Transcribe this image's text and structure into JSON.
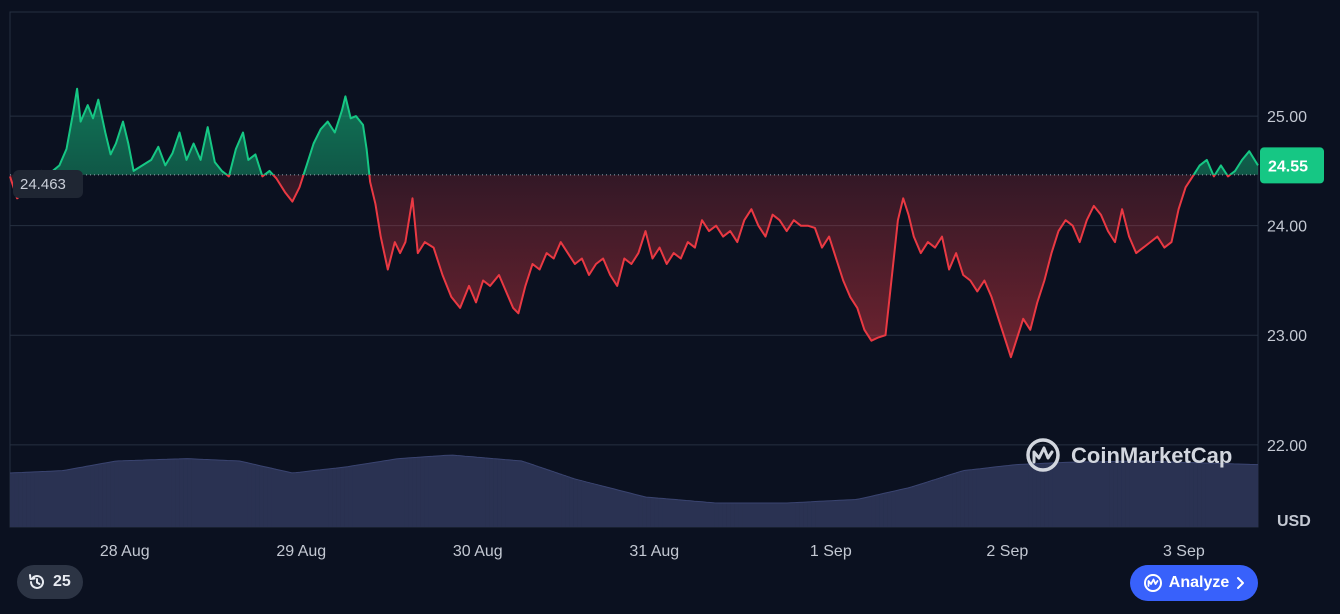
{
  "chart_data": {
    "type": "line",
    "baseline": 24.463,
    "baseline_label": "24.463",
    "current_price_label": "24.55",
    "currency": "USD",
    "y_ticks": [
      {
        "value": 25.0,
        "label": "25.00"
      },
      {
        "value": 24.0,
        "label": "24.00"
      },
      {
        "value": 23.0,
        "label": "23.00"
      },
      {
        "value": 22.0,
        "label": "22.00"
      }
    ],
    "ylim": [
      21.25,
      25.95
    ],
    "xlim": [
      0,
      7.07
    ],
    "x_ticks": [
      {
        "value": 0.65,
        "label": "28 Aug"
      },
      {
        "value": 1.65,
        "label": "29 Aug"
      },
      {
        "value": 2.65,
        "label": "30 Aug"
      },
      {
        "value": 3.65,
        "label": "31 Aug"
      },
      {
        "value": 4.65,
        "label": "1 Sep"
      },
      {
        "value": 5.65,
        "label": "2 Sep"
      },
      {
        "value": 6.65,
        "label": "3 Sep"
      }
    ],
    "series": [
      {
        "points": [
          [
            0.0,
            24.45
          ],
          [
            0.04,
            24.25
          ],
          [
            0.08,
            24.3
          ],
          [
            0.13,
            24.4
          ],
          [
            0.18,
            24.5
          ],
          [
            0.22,
            24.47
          ],
          [
            0.28,
            24.55
          ],
          [
            0.32,
            24.7
          ],
          [
            0.36,
            25.05
          ],
          [
            0.38,
            25.25
          ],
          [
            0.4,
            24.95
          ],
          [
            0.44,
            25.1
          ],
          [
            0.47,
            24.98
          ],
          [
            0.5,
            25.15
          ],
          [
            0.54,
            24.85
          ],
          [
            0.57,
            24.65
          ],
          [
            0.6,
            24.75
          ],
          [
            0.64,
            24.95
          ],
          [
            0.67,
            24.75
          ],
          [
            0.7,
            24.5
          ],
          [
            0.75,
            24.55
          ],
          [
            0.8,
            24.6
          ],
          [
            0.84,
            24.72
          ],
          [
            0.88,
            24.55
          ],
          [
            0.92,
            24.66
          ],
          [
            0.96,
            24.85
          ],
          [
            1.0,
            24.6
          ],
          [
            1.04,
            24.75
          ],
          [
            1.08,
            24.6
          ],
          [
            1.12,
            24.9
          ],
          [
            1.16,
            24.58
          ],
          [
            1.2,
            24.5
          ],
          [
            1.24,
            24.45
          ],
          [
            1.28,
            24.7
          ],
          [
            1.32,
            24.85
          ],
          [
            1.35,
            24.6
          ],
          [
            1.39,
            24.65
          ],
          [
            1.43,
            24.45
          ],
          [
            1.47,
            24.5
          ],
          [
            1.51,
            24.43
          ],
          [
            1.56,
            24.3
          ],
          [
            1.6,
            24.22
          ],
          [
            1.64,
            24.35
          ],
          [
            1.68,
            24.55
          ],
          [
            1.72,
            24.75
          ],
          [
            1.76,
            24.88
          ],
          [
            1.8,
            24.95
          ],
          [
            1.84,
            24.85
          ],
          [
            1.88,
            25.05
          ],
          [
            1.9,
            25.18
          ],
          [
            1.93,
            24.98
          ],
          [
            1.96,
            25.0
          ],
          [
            2.0,
            24.92
          ],
          [
            2.02,
            24.7
          ],
          [
            2.04,
            24.4
          ],
          [
            2.07,
            24.2
          ],
          [
            2.1,
            23.9
          ],
          [
            2.14,
            23.6
          ],
          [
            2.18,
            23.85
          ],
          [
            2.21,
            23.75
          ],
          [
            2.24,
            23.85
          ],
          [
            2.28,
            24.25
          ],
          [
            2.31,
            23.75
          ],
          [
            2.35,
            23.85
          ],
          [
            2.4,
            23.8
          ],
          [
            2.45,
            23.55
          ],
          [
            2.5,
            23.35
          ],
          [
            2.55,
            23.25
          ],
          [
            2.6,
            23.45
          ],
          [
            2.64,
            23.3
          ],
          [
            2.68,
            23.5
          ],
          [
            2.72,
            23.45
          ],
          [
            2.77,
            23.55
          ],
          [
            2.81,
            23.4
          ],
          [
            2.85,
            23.25
          ],
          [
            2.88,
            23.2
          ],
          [
            2.92,
            23.45
          ],
          [
            2.96,
            23.65
          ],
          [
            3.0,
            23.6
          ],
          [
            3.04,
            23.75
          ],
          [
            3.08,
            23.7
          ],
          [
            3.12,
            23.85
          ],
          [
            3.16,
            23.75
          ],
          [
            3.2,
            23.65
          ],
          [
            3.24,
            23.7
          ],
          [
            3.28,
            23.55
          ],
          [
            3.32,
            23.65
          ],
          [
            3.36,
            23.7
          ],
          [
            3.4,
            23.55
          ],
          [
            3.44,
            23.45
          ],
          [
            3.48,
            23.7
          ],
          [
            3.52,
            23.65
          ],
          [
            3.56,
            23.75
          ],
          [
            3.6,
            23.95
          ],
          [
            3.64,
            23.7
          ],
          [
            3.68,
            23.8
          ],
          [
            3.72,
            23.65
          ],
          [
            3.76,
            23.75
          ],
          [
            3.8,
            23.7
          ],
          [
            3.84,
            23.85
          ],
          [
            3.88,
            23.8
          ],
          [
            3.92,
            24.05
          ],
          [
            3.96,
            23.95
          ],
          [
            4.0,
            24.0
          ],
          [
            4.04,
            23.9
          ],
          [
            4.08,
            23.95
          ],
          [
            4.12,
            23.85
          ],
          [
            4.16,
            24.05
          ],
          [
            4.2,
            24.15
          ],
          [
            4.24,
            24.0
          ],
          [
            4.28,
            23.9
          ],
          [
            4.32,
            24.1
          ],
          [
            4.36,
            24.05
          ],
          [
            4.4,
            23.95
          ],
          [
            4.44,
            24.05
          ],
          [
            4.48,
            24.0
          ],
          [
            4.52,
            24.0
          ],
          [
            4.56,
            23.98
          ],
          [
            4.6,
            23.8
          ],
          [
            4.64,
            23.9
          ],
          [
            4.68,
            23.7
          ],
          [
            4.72,
            23.5
          ],
          [
            4.76,
            23.35
          ],
          [
            4.8,
            23.25
          ],
          [
            4.84,
            23.05
          ],
          [
            4.88,
            22.95
          ],
          [
            4.92,
            22.98
          ],
          [
            4.96,
            23.0
          ],
          [
            5.0,
            23.6
          ],
          [
            5.03,
            24.05
          ],
          [
            5.06,
            24.25
          ],
          [
            5.09,
            24.1
          ],
          [
            5.12,
            23.9
          ],
          [
            5.16,
            23.75
          ],
          [
            5.2,
            23.85
          ],
          [
            5.24,
            23.8
          ],
          [
            5.28,
            23.9
          ],
          [
            5.32,
            23.6
          ],
          [
            5.36,
            23.75
          ],
          [
            5.4,
            23.55
          ],
          [
            5.44,
            23.5
          ],
          [
            5.48,
            23.4
          ],
          [
            5.52,
            23.5
          ],
          [
            5.56,
            23.35
          ],
          [
            5.6,
            23.15
          ],
          [
            5.64,
            22.95
          ],
          [
            5.67,
            22.8
          ],
          [
            5.7,
            22.95
          ],
          [
            5.74,
            23.15
          ],
          [
            5.78,
            23.05
          ],
          [
            5.82,
            23.3
          ],
          [
            5.86,
            23.5
          ],
          [
            5.9,
            23.75
          ],
          [
            5.94,
            23.95
          ],
          [
            5.98,
            24.05
          ],
          [
            6.02,
            24.0
          ],
          [
            6.06,
            23.85
          ],
          [
            6.1,
            24.05
          ],
          [
            6.14,
            24.18
          ],
          [
            6.18,
            24.1
          ],
          [
            6.22,
            23.95
          ],
          [
            6.26,
            23.85
          ],
          [
            6.3,
            24.15
          ],
          [
            6.34,
            23.9
          ],
          [
            6.38,
            23.75
          ],
          [
            6.42,
            23.8
          ],
          [
            6.46,
            23.85
          ],
          [
            6.5,
            23.9
          ],
          [
            6.54,
            23.8
          ],
          [
            6.58,
            23.85
          ],
          [
            6.62,
            24.15
          ],
          [
            6.66,
            24.35
          ],
          [
            6.7,
            24.45
          ],
          [
            6.74,
            24.55
          ],
          [
            6.78,
            24.6
          ],
          [
            6.82,
            24.45
          ],
          [
            6.86,
            24.55
          ],
          [
            6.9,
            24.45
          ],
          [
            6.94,
            24.5
          ],
          [
            6.98,
            24.6
          ],
          [
            7.02,
            24.68
          ],
          [
            7.07,
            24.55
          ]
        ]
      }
    ],
    "volume": [
      [
        0.0,
        0.45
      ],
      [
        0.3,
        0.47
      ],
      [
        0.6,
        0.55
      ],
      [
        1.0,
        0.57
      ],
      [
        1.3,
        0.55
      ],
      [
        1.6,
        0.45
      ],
      [
        1.9,
        0.5
      ],
      [
        2.2,
        0.57
      ],
      [
        2.5,
        0.6
      ],
      [
        2.9,
        0.55
      ],
      [
        3.2,
        0.4
      ],
      [
        3.6,
        0.25
      ],
      [
        4.0,
        0.2
      ],
      [
        4.4,
        0.2
      ],
      [
        4.8,
        0.23
      ],
      [
        5.1,
        0.33
      ],
      [
        5.4,
        0.47
      ],
      [
        5.7,
        0.52
      ],
      [
        6.0,
        0.54
      ],
      [
        6.4,
        0.55
      ],
      [
        7.07,
        0.52
      ]
    ],
    "colors": {
      "up": "#16c784",
      "down": "#ea3943",
      "grid": "#263040",
      "volume": "#2a3252",
      "volume_edge": "#3a4470",
      "baseline": "#9aa3b2",
      "price_badge": "#16c784"
    }
  },
  "watermark": {
    "brand": "CoinMarketCap",
    "icon": "coinmarketcap-logo-icon"
  },
  "controls": {
    "history_count": "25",
    "history_icon": "history-clock-icon",
    "analyze_label": "Analyze",
    "analyze_icon": "coinmarketcap-logo-icon",
    "analyze_chevron_icon": "chevron-right-icon",
    "analyze_color": "#3861fb"
  }
}
